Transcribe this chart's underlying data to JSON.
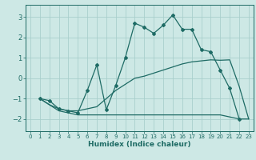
{
  "xlabel": "Humidex (Indice chaleur)",
  "bg_color": "#cde8e5",
  "grid_color": "#aacfcc",
  "line_color": "#1e6b65",
  "xlim": [
    -0.5,
    23.5
  ],
  "ylim": [
    -2.6,
    3.6
  ],
  "xticks": [
    0,
    1,
    2,
    3,
    4,
    5,
    6,
    7,
    8,
    9,
    10,
    11,
    12,
    13,
    14,
    15,
    16,
    17,
    18,
    19,
    20,
    21,
    22,
    23
  ],
  "yticks": [
    -2,
    -1,
    0,
    1,
    2,
    3
  ],
  "line1_x": [
    1,
    2,
    3,
    4,
    5,
    6,
    7,
    8,
    9,
    10,
    11,
    12,
    13,
    14,
    15,
    16,
    17,
    18,
    19,
    20,
    21,
    22,
    23
  ],
  "line1_y": [
    -1.0,
    -1.3,
    -1.6,
    -1.7,
    -1.8,
    -1.8,
    -1.8,
    -1.8,
    -1.8,
    -1.8,
    -1.8,
    -1.8,
    -1.8,
    -1.8,
    -1.8,
    -1.8,
    -1.8,
    -1.8,
    -1.8,
    -1.8,
    -1.9,
    -2.0,
    -2.0
  ],
  "line2_x": [
    1,
    2,
    3,
    4,
    5,
    6,
    7,
    8,
    9,
    10,
    11,
    12,
    13,
    14,
    15,
    16,
    17,
    18,
    19,
    20,
    21,
    22,
    23
  ],
  "line2_y": [
    -1.0,
    -1.3,
    -1.5,
    -1.6,
    -1.6,
    -1.5,
    -1.4,
    -1.0,
    -0.6,
    -0.3,
    0.0,
    0.1,
    0.25,
    0.4,
    0.55,
    0.7,
    0.8,
    0.85,
    0.9,
    0.88,
    0.9,
    -0.4,
    -2.0
  ],
  "line3_x": [
    1,
    2,
    3,
    4,
    5,
    6,
    7,
    8,
    9,
    10,
    11,
    12,
    13,
    14,
    15,
    16,
    17,
    18,
    19,
    20,
    21,
    22
  ],
  "line3_y": [
    -1.0,
    -1.1,
    -1.5,
    -1.6,
    -1.7,
    -0.6,
    0.65,
    -1.55,
    -0.35,
    1.0,
    2.7,
    2.5,
    2.2,
    2.6,
    3.1,
    2.4,
    2.4,
    1.4,
    1.3,
    0.4,
    -0.5,
    -2.0
  ]
}
